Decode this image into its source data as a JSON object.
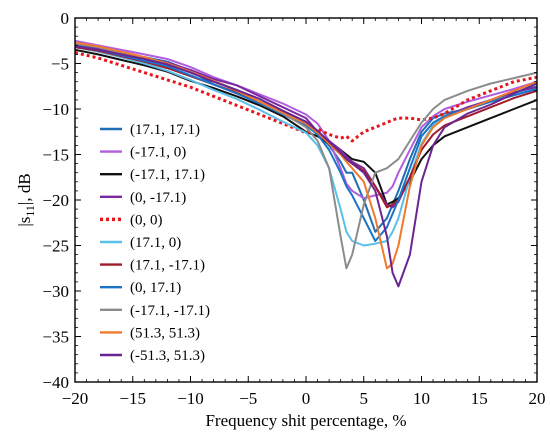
{
  "chart_data": {
    "type": "line",
    "title": "",
    "xlabel": "Frequency shit percentage, %",
    "ylabel_parts": {
      "pre": "|s",
      "sub": "11",
      "post": "|, dB"
    },
    "xlim": [
      -20,
      20
    ],
    "ylim": [
      -40,
      0
    ],
    "xticks": [
      -20,
      -15,
      -10,
      -5,
      0,
      5,
      10,
      15,
      20
    ],
    "yticks": [
      0,
      -5,
      -10,
      -15,
      -20,
      -25,
      -30,
      -35,
      -40
    ],
    "grid": false,
    "legend_position": "left-center",
    "x": [
      -20,
      -18,
      -16,
      -14,
      -12,
      -10,
      -8,
      -6,
      -4,
      -2,
      0,
      1,
      2,
      3,
      3.5,
      4,
      5,
      6,
      7,
      7.5,
      8,
      9,
      10,
      11,
      12,
      14,
      16,
      18,
      20
    ],
    "series": [
      {
        "name": "(17.1, 17.1)",
        "color": "#1f6fb2",
        "dash": "",
        "values": [
          -3.0,
          -3.4,
          -4.0,
          -4.3,
          -4.8,
          -5.8,
          -7.3,
          -8.2,
          -9.2,
          -10.4,
          -11.6,
          -12.6,
          -14.0,
          -15.8,
          -17.0,
          -17.0,
          -20.0,
          -23.5,
          -22.0,
          -20.5,
          -19.0,
          -15.5,
          -12.5,
          -11.0,
          -10.5,
          -10.0,
          -9.0,
          -8.2,
          -7.5
        ]
      },
      {
        "name": "(-17.1, 0)",
        "color": "#b05de0",
        "dash": "",
        "values": [
          -2.5,
          -3.0,
          -3.5,
          -4.0,
          -4.5,
          -5.4,
          -6.5,
          -7.4,
          -8.4,
          -9.4,
          -10.6,
          -11.6,
          -13.5,
          -16.5,
          -18.2,
          -19.0,
          -19.8,
          -19.5,
          -19.2,
          -18.5,
          -17.0,
          -14.5,
          -12.0,
          -10.8,
          -10.0,
          -9.2,
          -8.5,
          -7.8,
          -7.0
        ]
      },
      {
        "name": "(-17.1, 17.1)",
        "color": "#111111",
        "dash": "",
        "values": [
          -3.5,
          -4.0,
          -4.6,
          -5.2,
          -5.9,
          -6.9,
          -7.7,
          -8.6,
          -9.6,
          -10.8,
          -12.5,
          -13.0,
          -13.8,
          -14.5,
          -15.0,
          -15.5,
          -15.8,
          -17.0,
          -20.5,
          -20.2,
          -19.8,
          -18.0,
          -15.5,
          -14.0,
          -13.0,
          -12.0,
          -11.0,
          -10.0,
          -9.0
        ]
      },
      {
        "name": "(0, -17.1)",
        "color": "#7a2a9e",
        "dash": "",
        "values": [
          -2.9,
          -3.3,
          -3.9,
          -4.4,
          -4.9,
          -5.7,
          -6.7,
          -7.4,
          -8.6,
          -9.8,
          -11.0,
          -12.5,
          -13.5,
          -14.5,
          -15.2,
          -15.8,
          -16.5,
          -18.5,
          -20.5,
          -20.8,
          -20.2,
          -17.5,
          -14.0,
          -11.8,
          -10.8,
          -9.8,
          -9.0,
          -8.2,
          -7.6
        ]
      },
      {
        "name": "(0, 0)",
        "color": "#e8141c",
        "dash": "3,3",
        "values": [
          -3.8,
          -4.4,
          -5.2,
          -6.0,
          -6.8,
          -7.6,
          -8.6,
          -9.6,
          -10.6,
          -11.6,
          -12.6,
          -12.2,
          -12.8,
          -13.2,
          -13.0,
          -13.5,
          -12.5,
          -12.0,
          -11.5,
          -11.2,
          -11.0,
          -11.0,
          -11.2,
          -11.0,
          -10.5,
          -9.0,
          -8.0,
          -7.0,
          -6.5
        ]
      },
      {
        "name": "(17.1, 0)",
        "color": "#5bbfe8",
        "dash": "",
        "values": [
          -3.2,
          -3.7,
          -4.3,
          -5.0,
          -5.8,
          -6.8,
          -7.9,
          -8.9,
          -10.1,
          -11.4,
          -12.6,
          -14.0,
          -16.5,
          -21.0,
          -23.5,
          -24.5,
          -25.0,
          -24.8,
          -24.5,
          -23.5,
          -22.0,
          -17.5,
          -13.8,
          -11.8,
          -10.8,
          -10.0,
          -9.2,
          -8.4,
          -7.8
        ]
      },
      {
        "name": "(17.1, -17.1)",
        "color": "#a01c2c",
        "dash": "",
        "values": [
          -3.2,
          -3.6,
          -4.2,
          -4.8,
          -5.5,
          -6.4,
          -7.3,
          -8.2,
          -9.2,
          -10.4,
          -11.6,
          -12.6,
          -13.8,
          -15.0,
          -15.5,
          -16.0,
          -16.8,
          -18.5,
          -20.8,
          -20.5,
          -20.0,
          -17.5,
          -14.5,
          -12.8,
          -11.8,
          -10.8,
          -9.8,
          -8.8,
          -8.0
        ]
      },
      {
        "name": "(0, 17.1)",
        "color": "#1a73c8",
        "dash": "",
        "values": [
          -3.0,
          -3.5,
          -4.1,
          -4.7,
          -5.3,
          -6.3,
          -7.3,
          -8.3,
          -9.4,
          -10.6,
          -11.8,
          -12.8,
          -14.5,
          -17.0,
          -18.5,
          -19.5,
          -22.0,
          -24.5,
          -23.0,
          -21.5,
          -20.0,
          -16.5,
          -13.0,
          -11.5,
          -10.8,
          -10.0,
          -9.2,
          -8.5,
          -7.8
        ]
      },
      {
        "name": "(-17.1, -17.1)",
        "color": "#8c8c8c",
        "dash": "",
        "values": [
          -2.8,
          -3.2,
          -3.8,
          -4.4,
          -5.0,
          -5.9,
          -6.9,
          -7.9,
          -9.2,
          -10.5,
          -12.0,
          -13.5,
          -16.5,
          -24.0,
          -27.5,
          -26.0,
          -20.5,
          -17.0,
          -16.5,
          -16.0,
          -15.5,
          -13.5,
          -11.5,
          -10.0,
          -9.0,
          -8.0,
          -7.2,
          -6.6,
          -6.0
        ]
      },
      {
        "name": "(51.3, 51.3)",
        "color": "#f07a2c",
        "dash": "",
        "values": [
          -2.7,
          -3.1,
          -3.7,
          -4.3,
          -5.0,
          -5.9,
          -6.9,
          -8.0,
          -9.2,
          -10.4,
          -11.6,
          -12.6,
          -13.8,
          -15.0,
          -15.8,
          -16.5,
          -18.0,
          -22.0,
          -27.5,
          -27.0,
          -25.0,
          -18.5,
          -14.0,
          -12.0,
          -11.0,
          -10.0,
          -9.0,
          -8.0,
          -7.0
        ]
      },
      {
        "name": "(-51.3, 51.3)",
        "color": "#6b2590",
        "dash": "",
        "values": [
          -3.1,
          -3.5,
          -4.0,
          -4.5,
          -5.1,
          -6.0,
          -7.0,
          -7.9,
          -8.9,
          -10.2,
          -11.4,
          -12.4,
          -13.6,
          -14.8,
          -15.5,
          -16.0,
          -17.0,
          -19.0,
          -24.0,
          -28.0,
          -29.5,
          -26.0,
          -18.0,
          -14.0,
          -12.0,
          -10.5,
          -9.5,
          -8.3,
          -7.2
        ]
      }
    ]
  }
}
